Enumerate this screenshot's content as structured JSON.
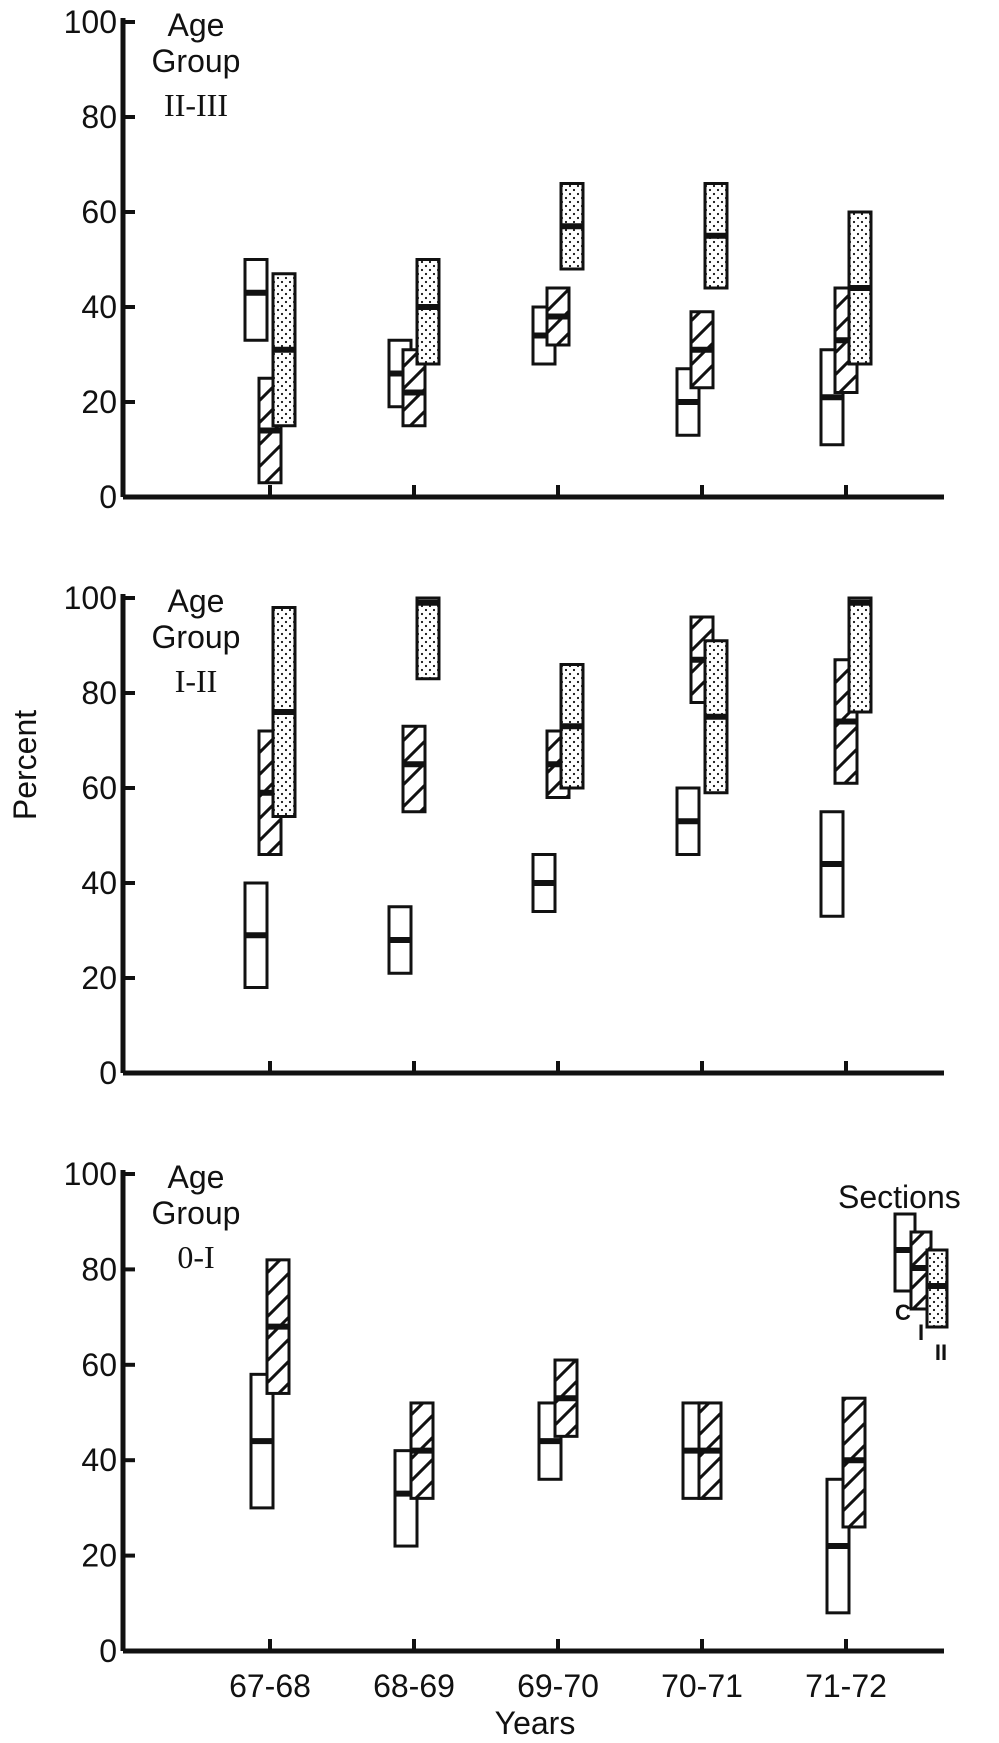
{
  "chart_data": {
    "type": "box-range",
    "ylabel": "Percent",
    "xlabel": "Years",
    "categories": [
      "67-68",
      "68-69",
      "69-70",
      "70-71",
      "71-72"
    ],
    "ylim": [
      0,
      100
    ],
    "yticks": [
      0,
      20,
      40,
      60,
      80,
      100
    ],
    "grid": false,
    "legend": {
      "title": "Sections",
      "placement": "right of bottom panel",
      "entries": [
        {
          "key": "C",
          "style": "plain"
        },
        {
          "key": "I",
          "style": "hatched"
        },
        {
          "key": "II",
          "style": "dotted"
        }
      ]
    },
    "panels": [
      {
        "label_line1": "Age",
        "label_line2": "Group",
        "label_group": "II-III",
        "series": [
          {
            "key": "C",
            "style": "plain",
            "ranges": [
              {
                "category": "67-68",
                "low": 33,
                "median": 43,
                "high": 50
              },
              {
                "category": "68-69",
                "low": 19,
                "median": 26,
                "high": 33
              },
              {
                "category": "69-70",
                "low": 28,
                "median": 34,
                "high": 40
              },
              {
                "category": "70-71",
                "low": 13,
                "median": 20,
                "high": 27
              },
              {
                "category": "71-72",
                "low": 11,
                "median": 21,
                "high": 31
              }
            ]
          },
          {
            "key": "I",
            "style": "hatched",
            "ranges": [
              {
                "category": "67-68",
                "low": 3,
                "median": 14,
                "high": 25
              },
              {
                "category": "68-69",
                "low": 15,
                "median": 22,
                "high": 31
              },
              {
                "category": "69-70",
                "low": 32,
                "median": 38,
                "high": 44
              },
              {
                "category": "70-71",
                "low": 23,
                "median": 31,
                "high": 39
              },
              {
                "category": "71-72",
                "low": 22,
                "median": 33,
                "high": 44
              }
            ]
          },
          {
            "key": "II",
            "style": "dotted",
            "ranges": [
              {
                "category": "67-68",
                "low": 15,
                "median": 31,
                "high": 47
              },
              {
                "category": "68-69",
                "low": 28,
                "median": 40,
                "high": 50
              },
              {
                "category": "69-70",
                "low": 48,
                "median": 57,
                "high": 66
              },
              {
                "category": "70-71",
                "low": 44,
                "median": 55,
                "high": 66
              },
              {
                "category": "71-72",
                "low": 28,
                "median": 44,
                "high": 60
              }
            ]
          }
        ]
      },
      {
        "label_line1": "Age",
        "label_line2": "Group",
        "label_group": "I-II",
        "series": [
          {
            "key": "C",
            "style": "plain",
            "ranges": [
              {
                "category": "67-68",
                "low": 18,
                "median": 29,
                "high": 40
              },
              {
                "category": "68-69",
                "low": 21,
                "median": 28,
                "high": 35
              },
              {
                "category": "69-70",
                "low": 34,
                "median": 40,
                "high": 46
              },
              {
                "category": "70-71",
                "low": 46,
                "median": 53,
                "high": 60
              },
              {
                "category": "71-72",
                "low": 33,
                "median": 44,
                "high": 55
              }
            ]
          },
          {
            "key": "I",
            "style": "hatched",
            "ranges": [
              {
                "category": "67-68",
                "low": 46,
                "median": 59,
                "high": 72
              },
              {
                "category": "68-69",
                "low": 55,
                "median": 65,
                "high": 73
              },
              {
                "category": "69-70",
                "low": 58,
                "median": 65,
                "high": 72
              },
              {
                "category": "70-71",
                "low": 78,
                "median": 87,
                "high": 96
              },
              {
                "category": "71-72",
                "low": 61,
                "median": 74,
                "high": 87
              }
            ]
          },
          {
            "key": "II",
            "style": "dotted",
            "ranges": [
              {
                "category": "67-68",
                "low": 54,
                "median": 76,
                "high": 98
              },
              {
                "category": "68-69",
                "low": 83,
                "median": 99,
                "high": 100
              },
              {
                "category": "69-70",
                "low": 60,
                "median": 73,
                "high": 86
              },
              {
                "category": "70-71",
                "low": 59,
                "median": 75,
                "high": 91
              },
              {
                "category": "71-72",
                "low": 76,
                "median": 99,
                "high": 100
              }
            ]
          }
        ]
      },
      {
        "label_line1": "Age",
        "label_line2": "Group",
        "label_group": "0-I",
        "series": [
          {
            "key": "C",
            "style": "plain",
            "ranges": [
              {
                "category": "67-68",
                "low": 30,
                "median": 44,
                "high": 58
              },
              {
                "category": "68-69",
                "low": 22,
                "median": 33,
                "high": 42
              },
              {
                "category": "69-70",
                "low": 36,
                "median": 44,
                "high": 52
              },
              {
                "category": "70-71",
                "low": 32,
                "median": 42,
                "high": 52
              },
              {
                "category": "71-72",
                "low": 8,
                "median": 22,
                "high": 36
              }
            ]
          },
          {
            "key": "I",
            "style": "hatched",
            "ranges": [
              {
                "category": "67-68",
                "low": 54,
                "median": 68,
                "high": 82
              },
              {
                "category": "68-69",
                "low": 32,
                "median": 42,
                "high": 52
              },
              {
                "category": "69-70",
                "low": 45,
                "median": 53,
                "high": 61
              },
              {
                "category": "70-71",
                "low": 32,
                "median": 42,
                "high": 52
              },
              {
                "category": "71-72",
                "low": 26,
                "median": 40,
                "high": 53
              }
            ]
          }
        ]
      }
    ]
  }
}
